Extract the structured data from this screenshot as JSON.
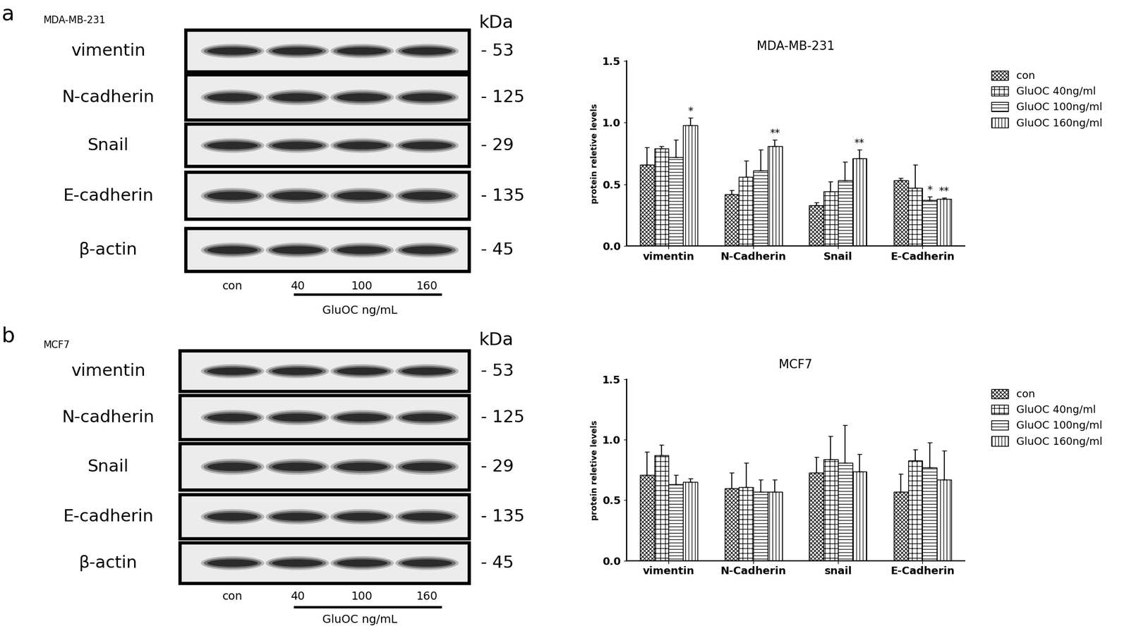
{
  "panels": [
    {
      "letter": "a",
      "cell_line": "MDA-MB-231",
      "blot": {
        "kda_header": "kDa",
        "rows": [
          {
            "protein": "vimentin",
            "kda": "- 53"
          },
          {
            "protein": "N-cadherin",
            "kda": "- 125"
          },
          {
            "protein": "Snail",
            "kda": "- 29"
          },
          {
            "protein": "E-cadherin",
            "kda": "- 135"
          },
          {
            "protein": "β-actin",
            "kda": "- 45"
          }
        ],
        "lanes": [
          "con",
          "40",
          "100",
          "160"
        ],
        "treatment_label": "GluOC ng/mL"
      }
    },
    {
      "letter": "b",
      "cell_line": "MCF7",
      "blot": {
        "kda_header": "kDa",
        "rows": [
          {
            "protein": "vimentin",
            "kda": "- 53"
          },
          {
            "protein": "N-cadherin",
            "kda": "- 125"
          },
          {
            "protein": "Snail",
            "kda": "- 29"
          },
          {
            "protein": "E-cadherin",
            "kda": "- 135"
          },
          {
            "protein": "β-actin",
            "kda": "- 45"
          }
        ],
        "lanes": [
          "con",
          "40",
          "100",
          "160"
        ],
        "treatment_label": "GluOC ng/mL"
      }
    }
  ],
  "chart_data": [
    {
      "type": "bar",
      "title": "MDA-MB-231",
      "y_label": "protein reletive levels",
      "categories": [
        "vimentin",
        "N-Cadherin",
        "Snail",
        "E-Cadherin"
      ],
      "ylim": [
        0,
        1.5
      ],
      "yticks": [
        {
          "value": 0,
          "label": "0.0"
        },
        {
          "value": 0.5,
          "label": "0.5"
        },
        {
          "value": 1,
          "label": "1.0"
        },
        {
          "value": 1.5,
          "label": "1.5"
        }
      ],
      "legend": "right",
      "series": [
        {
          "name": "con",
          "color": "#ffffff",
          "values": [
            0.66,
            0.42,
            0.33,
            0.53
          ],
          "errors": [
            0.14,
            0.03,
            0.02,
            0.02
          ]
        },
        {
          "name": "GluOC 40ng/ml",
          "color": "#ffffff",
          "values": [
            0.79,
            0.56,
            0.44,
            0.47
          ],
          "errors": [
            0.02,
            0.13,
            0.08,
            0.19
          ]
        },
        {
          "name": "GluOC 100ng/ml",
          "color": "#ffffff",
          "values": [
            0.72,
            0.61,
            0.53,
            0.37
          ],
          "errors": [
            0.14,
            0.17,
            0.15,
            0.03
          ]
        },
        {
          "name": "GluOC 160ng/ml",
          "color": "#ffffff",
          "values": [
            0.98,
            0.81,
            0.71,
            0.38
          ],
          "errors": [
            0.06,
            0.05,
            0.07,
            0.01
          ]
        }
      ],
      "annotations": [
        {
          "text": "*",
          "category": "vimentin",
          "series": "GluOC 160ng/ml"
        },
        {
          "text": "**",
          "category": "N-Cadherin",
          "series": "GluOC 160ng/ml"
        },
        {
          "text": "**",
          "category": "Snail",
          "series": "GluOC 160ng/ml"
        },
        {
          "text": "*",
          "category": "E-Cadherin",
          "series": "GluOC 100ng/ml"
        },
        {
          "text": "**",
          "category": "E-Cadherin",
          "series": "GluOC 160ng/ml"
        }
      ]
    },
    {
      "type": "bar",
      "title": "MCF7",
      "y_label": "protein reletive levels",
      "categories": [
        "vimentin",
        "N-Cadherin",
        "snail",
        "E-Cadherin"
      ],
      "ylim": [
        0,
        1.5
      ],
      "yticks": [
        {
          "value": 0,
          "label": "0.0"
        },
        {
          "value": 0.5,
          "label": "0.5"
        },
        {
          "value": 1,
          "label": "1.0"
        },
        {
          "value": 1.5,
          "label": "1.5"
        }
      ],
      "legend": "right",
      "series": [
        {
          "name": "con",
          "color": "#ffffff",
          "values": [
            0.71,
            0.6,
            0.73,
            0.57
          ],
          "errors": [
            0.19,
            0.13,
            0.13,
            0.15
          ]
        },
        {
          "name": "GluOC 40ng/ml",
          "color": "#ffffff",
          "values": [
            0.87,
            0.61,
            0.84,
            0.83
          ],
          "errors": [
            0.09,
            0.2,
            0.19,
            0.09
          ]
        },
        {
          "name": "GluOC 100ng/ml",
          "color": "#ffffff",
          "values": [
            0.63,
            0.57,
            0.81,
            0.77
          ],
          "errors": [
            0.08,
            0.1,
            0.31,
            0.21
          ]
        },
        {
          "name": "GluOC 160ng/ml",
          "color": "#ffffff",
          "values": [
            0.65,
            0.57,
            0.74,
            0.67
          ],
          "errors": [
            0.03,
            0.1,
            0.14,
            0.24
          ]
        }
      ],
      "annotations": []
    }
  ]
}
